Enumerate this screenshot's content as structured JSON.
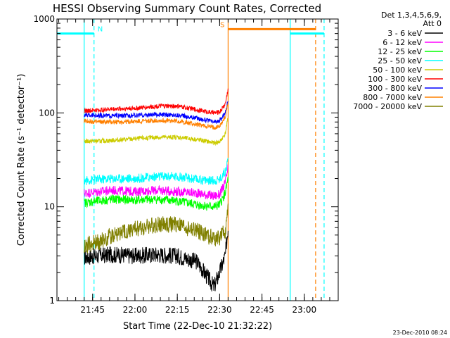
{
  "chart_data": {
    "type": "line",
    "title": "HESSI Observing Summary Count Rates, Corrected",
    "xlabel": "Start Time (22-Dec-10 21:32:22)",
    "ylabel": "Corrected Count Rate (s⁻¹ detector⁻¹)",
    "ylim": [
      1,
      1000
    ],
    "y_scale": "log",
    "x_range": [
      "21:32:22",
      "23:12:00"
    ],
    "x_ticks": [
      "21:45",
      "22:00",
      "22:15",
      "22:30",
      "22:45",
      "23:00"
    ],
    "y_ticks": [
      {
        "value": 1,
        "label": "1"
      },
      {
        "value": 10,
        "label": "10"
      },
      {
        "value": 100,
        "label": "100"
      },
      {
        "value": 1000,
        "label": "1000"
      }
    ],
    "legend_header": [
      "Det 1,3,4,5,6,9,",
      "Att 0"
    ],
    "legend_position": "right",
    "timestamp": "23-Dec-2010 08:24",
    "series": [
      {
        "name": "3 - 6 keV",
        "color": "#000000",
        "x": [
          "21:42:00",
          "21:47:00",
          "21:52:00",
          "22:00:00",
          "22:08:00",
          "22:15:00",
          "22:22:00",
          "22:28:00",
          "22:30:00",
          "22:32:00",
          "22:33:00"
        ],
        "values": [
          2.9,
          3.0,
          3.1,
          3.0,
          3.1,
          3.0,
          2.6,
          1.4,
          2.0,
          3.0,
          6.0
        ]
      },
      {
        "name": "6 - 12 keV",
        "color": "#ff00ff",
        "x": [
          "21:42:00",
          "21:47:00",
          "21:52:00",
          "22:00:00",
          "22:08:00",
          "22:15:00",
          "22:22:00",
          "22:28:00",
          "22:30:00",
          "22:32:00",
          "22:33:00"
        ],
        "values": [
          14.0,
          14.5,
          15.0,
          14.5,
          15.0,
          14.5,
          14.0,
          13.0,
          13.5,
          18.0,
          26.0
        ]
      },
      {
        "name": "12 - 25 keV",
        "color": "#00ff00",
        "x": [
          "21:42:00",
          "21:47:00",
          "21:52:00",
          "22:00:00",
          "22:08:00",
          "22:15:00",
          "22:22:00",
          "22:28:00",
          "22:30:00",
          "22:32:00",
          "22:33:00"
        ],
        "values": [
          11.0,
          11.5,
          12.0,
          11.8,
          12.0,
          11.5,
          10.5,
          10.0,
          10.5,
          14.0,
          20.0
        ]
      },
      {
        "name": "25 - 50 keV",
        "color": "#00ffff",
        "x": [
          "21:42:00",
          "21:47:00",
          "21:52:00",
          "22:00:00",
          "22:08:00",
          "22:15:00",
          "22:22:00",
          "22:28:00",
          "22:30:00",
          "22:32:00",
          "22:33:00"
        ],
        "values": [
          19.0,
          19.5,
          20.0,
          20.0,
          21.0,
          21.0,
          19.5,
          19.0,
          19.5,
          24.0,
          32.0
        ]
      },
      {
        "name": "50 - 100 keV",
        "color": "#cccc00",
        "x": [
          "21:42:00",
          "21:47:00",
          "21:52:00",
          "22:00:00",
          "22:08:00",
          "22:15:00",
          "22:22:00",
          "22:28:00",
          "22:30:00",
          "22:32:00",
          "22:33:00"
        ],
        "values": [
          50.0,
          50.0,
          51.0,
          53.0,
          55.0,
          55.0,
          52.0,
          48.0,
          49.0,
          60.0,
          90.0
        ]
      },
      {
        "name": "100 - 300 keV",
        "color": "#ff0000",
        "x": [
          "21:42:00",
          "21:47:00",
          "21:52:00",
          "22:00:00",
          "22:08:00",
          "22:15:00",
          "22:22:00",
          "22:28:00",
          "22:30:00",
          "22:32:00",
          "22:33:00"
        ],
        "values": [
          105.0,
          107.0,
          110.0,
          112.0,
          118.0,
          118.0,
          108.0,
          100.0,
          102.0,
          125.0,
          180.0
        ]
      },
      {
        "name": "300 - 800 keV",
        "color": "#0000ff",
        "x": [
          "21:42:00",
          "21:47:00",
          "21:52:00",
          "22:00:00",
          "22:08:00",
          "22:15:00",
          "22:22:00",
          "22:28:00",
          "22:30:00",
          "22:32:00",
          "22:33:00"
        ],
        "values": [
          95.0,
          94.0,
          93.0,
          94.0,
          96.0,
          95.0,
          88.0,
          80.0,
          82.0,
          100.0,
          140.0
        ]
      },
      {
        "name": "800 - 7000 keV",
        "color": "#ff8000",
        "x": [
          "21:42:00",
          "21:47:00",
          "21:52:00",
          "22:00:00",
          "22:08:00",
          "22:15:00",
          "22:22:00",
          "22:28:00",
          "22:30:00",
          "22:32:00",
          "22:33:00"
        ],
        "values": [
          82.0,
          80.0,
          80.0,
          81.0,
          83.0,
          82.0,
          75.0,
          70.0,
          72.0,
          90.0,
          130.0
        ]
      },
      {
        "name": "7000 - 20000 keV",
        "color": "#808000",
        "x": [
          "21:42:00",
          "21:47:00",
          "21:52:00",
          "22:00:00",
          "22:08:00",
          "22:15:00",
          "22:22:00",
          "22:28:00",
          "22:30:00",
          "22:32:00",
          "22:33:00"
        ],
        "values": [
          3.8,
          4.2,
          5.0,
          5.8,
          6.5,
          6.5,
          5.5,
          4.6,
          4.6,
          5.5,
          9.0
        ]
      }
    ],
    "annotations": [
      {
        "label": "N",
        "color": "#00ffff",
        "x": [
          "21:32:22",
          "21:45:30"
        ],
        "y": 700
      },
      {
        "label": "S",
        "color": "#ff8000",
        "x": [
          "22:33:00",
          "23:04:00"
        ],
        "y": 780
      },
      {
        "label": "",
        "color": "#00ffff",
        "x": [
          "22:55:00",
          "23:07:00"
        ],
        "y": 700
      }
    ],
    "vertical_markers": [
      {
        "x": "21:42:00",
        "color": "#00ffff",
        "style": "solid"
      },
      {
        "x": "21:45:30",
        "color": "#00ffff",
        "style": "dashed"
      },
      {
        "x": "22:33:00",
        "color": "#ff8000",
        "style": "solid"
      },
      {
        "x": "22:55:00",
        "color": "#00ffff",
        "style": "solid"
      },
      {
        "x": "23:04:00",
        "color": "#ff8000",
        "style": "dashed"
      },
      {
        "x": "23:07:00",
        "color": "#00ffff",
        "style": "dashed"
      }
    ]
  }
}
